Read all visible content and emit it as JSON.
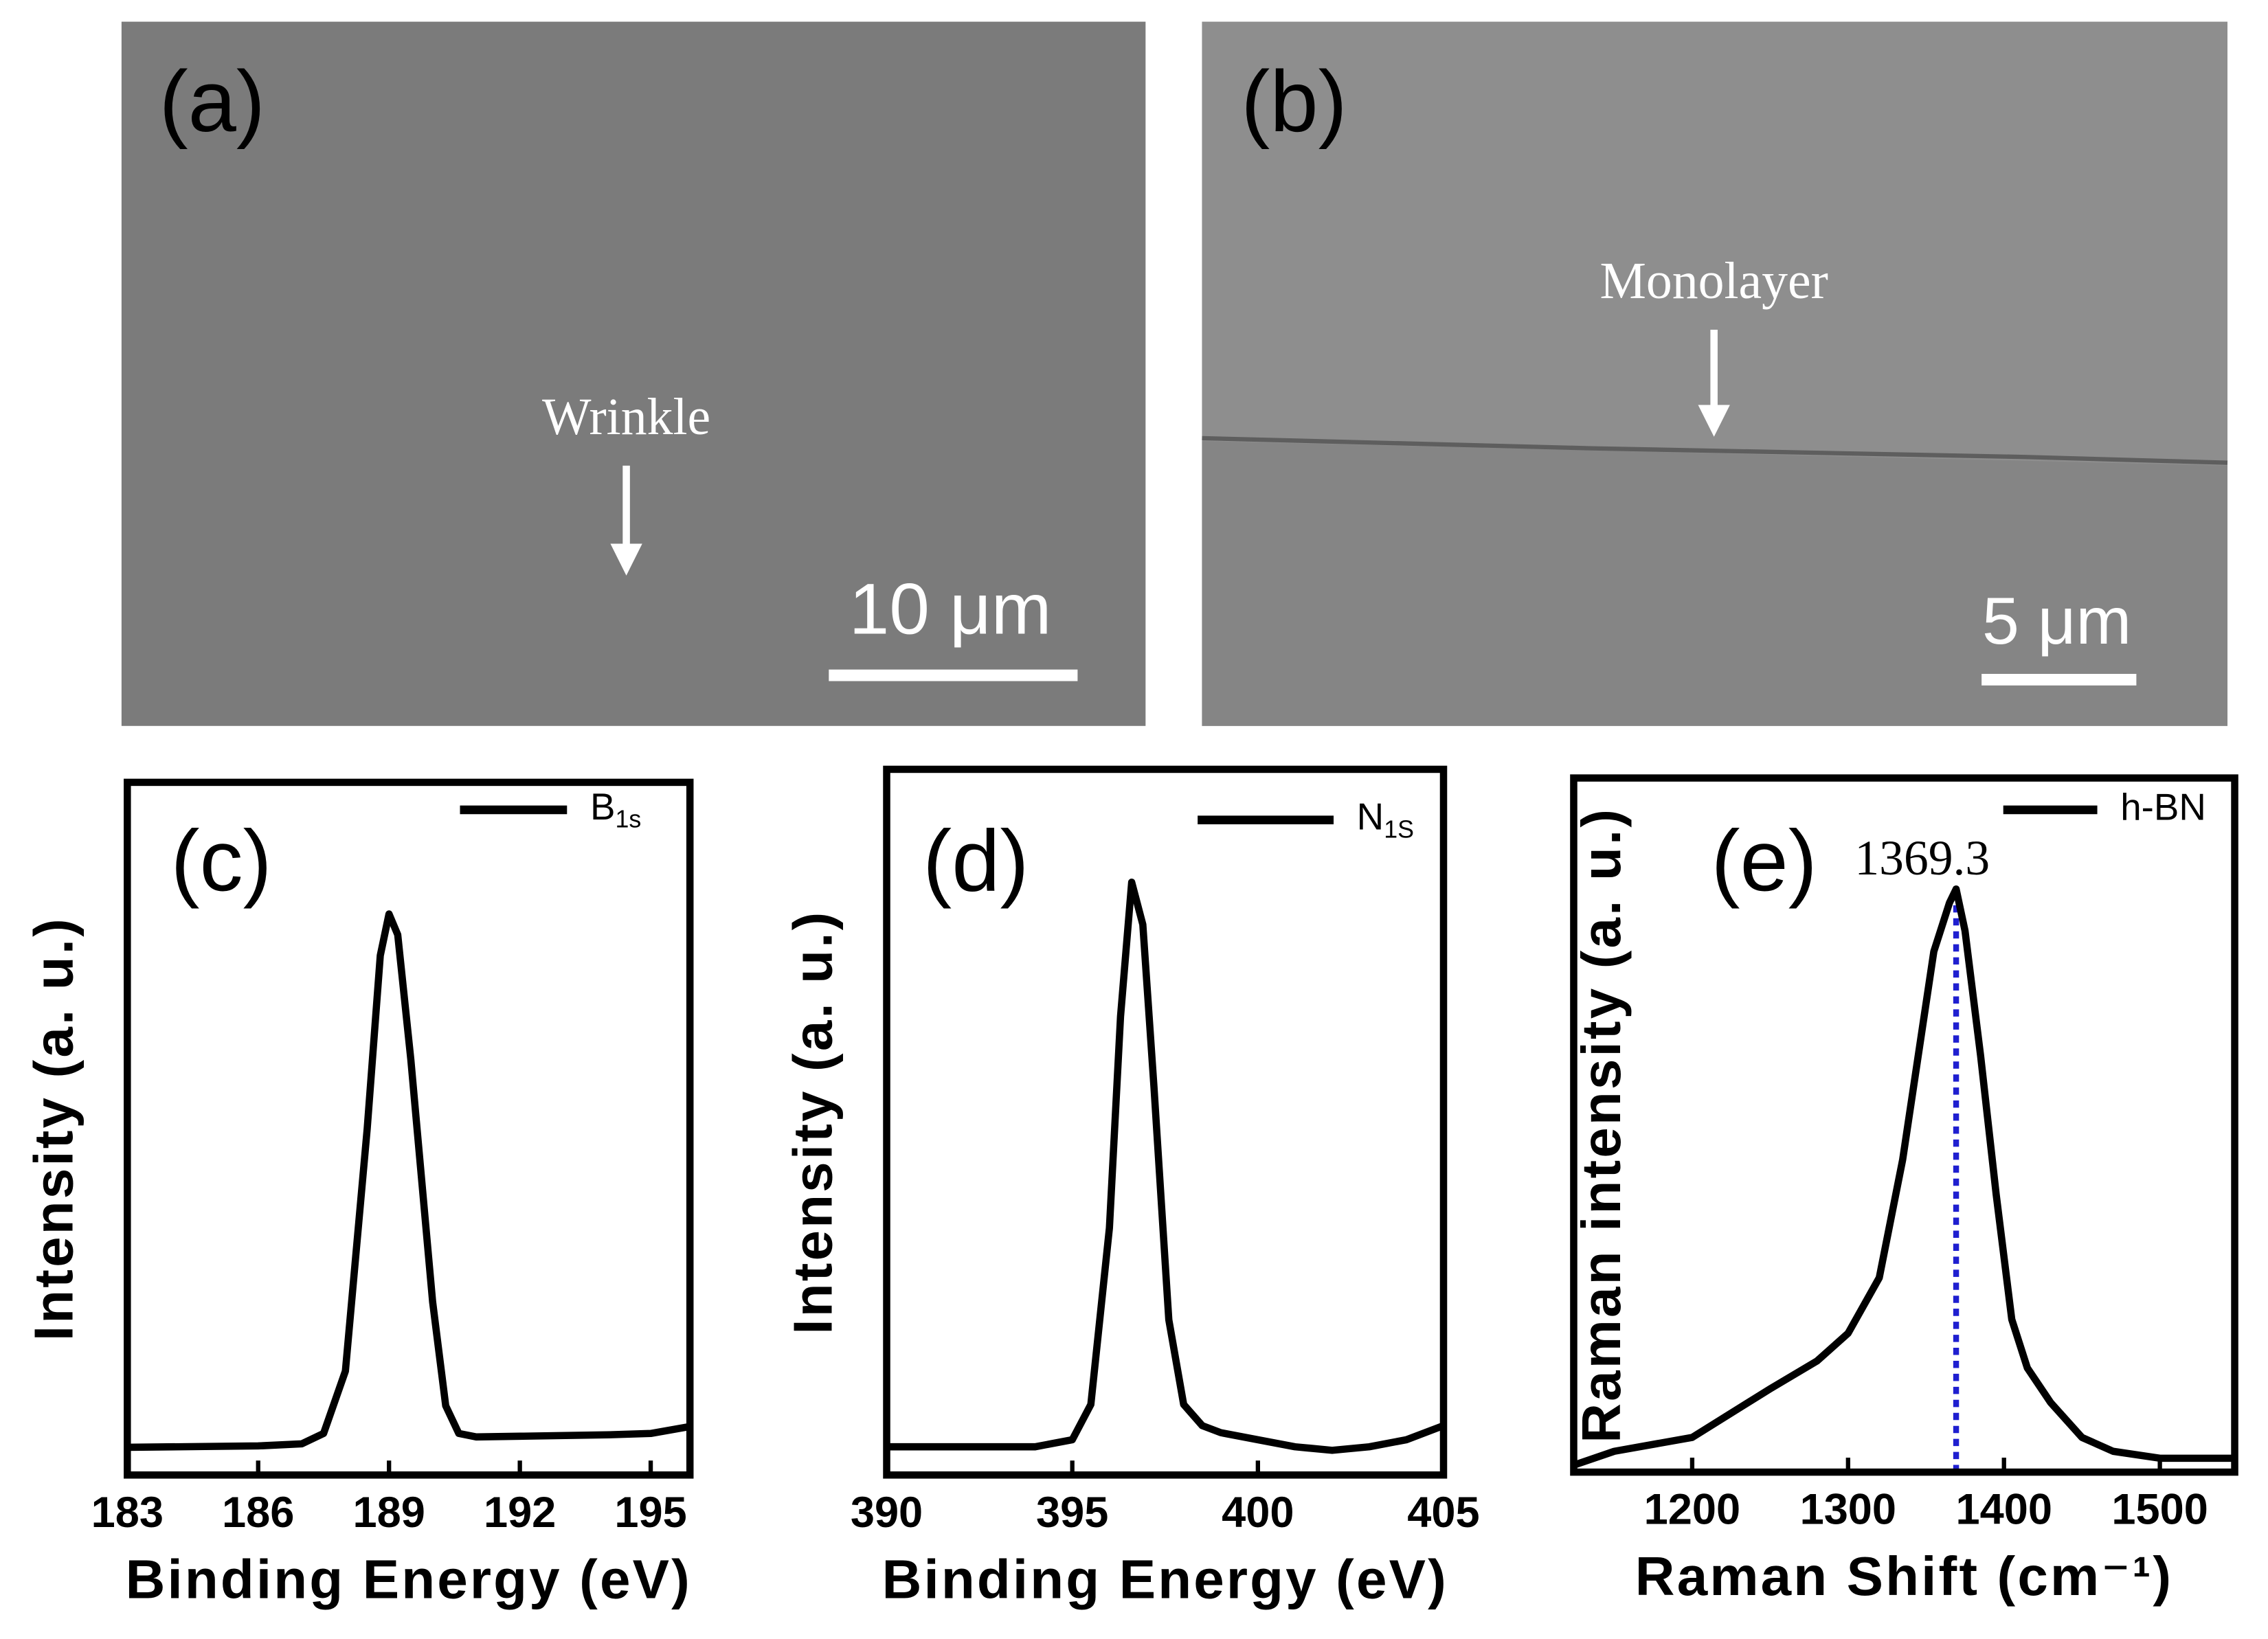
{
  "images": [
    {
      "label": "(a)",
      "annotation": "Wrinkle",
      "scale_bar": "10 μm"
    },
    {
      "label": "(b)",
      "annotation": "Monolayer",
      "scale_bar": "5 μm"
    }
  ],
  "chart_data": [
    {
      "type": "line",
      "panel": "(c)",
      "xlabel": "Binding Energy (eV)",
      "ylabel": "Intensity (a. u.)",
      "xlim": [
        183,
        195.9
      ],
      "xticks": [
        183,
        186,
        189,
        192,
        195
      ],
      "ylim": [
        0,
        100
      ],
      "series": [
        {
          "name": "B1s",
          "color": "#000000",
          "x": [
            183,
            186,
            187,
            187.5,
            188,
            188.5,
            188.8,
            189,
            189.2,
            189.5,
            190,
            190.3,
            190.6,
            191,
            192,
            194,
            195,
            195.9
          ],
          "values": [
            4,
            4.2,
            4.5,
            6,
            15,
            50,
            75,
            81,
            78,
            60,
            25,
            10,
            6,
            5.5,
            5.6,
            5.8,
            6,
            7
          ]
        }
      ]
    },
    {
      "type": "line",
      "panel": "(d)",
      "xlabel": "Binding Energy (eV)",
      "ylabel": "Intensity (a. u.)",
      "xlim": [
        390,
        405
      ],
      "xticks": [
        390,
        395,
        400,
        405
      ],
      "ylim": [
        0,
        100
      ],
      "series": [
        {
          "name": "N1S",
          "color": "#000000",
          "x": [
            390,
            394,
            395,
            395.5,
            396,
            396.3,
            396.6,
            396.9,
            397.2,
            397.6,
            398,
            398.5,
            399,
            400,
            401,
            402,
            403,
            404,
            405
          ],
          "values": [
            4,
            4,
            5,
            10,
            35,
            65,
            84,
            78,
            55,
            22,
            10,
            7,
            6,
            5,
            4,
            3.5,
            4,
            5,
            7
          ]
        }
      ]
    },
    {
      "type": "line",
      "panel": "(e)",
      "xlabel": "Raman Shift (cm⁻¹)",
      "ylabel": "Raman intensity (a. u.)",
      "xlim": [
        1124,
        1548
      ],
      "xticks": [
        1200,
        1300,
        1400,
        1500
      ],
      "ylim": [
        0,
        100
      ],
      "annotation": "1369.3",
      "marker_x": 1369.3,
      "marker_color": "#1f1fd0",
      "series": [
        {
          "name": "h-BN",
          "color": "#000000",
          "x": [
            1124,
            1150,
            1200,
            1250,
            1280,
            1300,
            1320,
            1335,
            1345,
            1355,
            1365,
            1369.3,
            1375,
            1385,
            1395,
            1405,
            1415,
            1430,
            1450,
            1470,
            1500,
            1548
          ],
          "values": [
            1,
            3,
            5,
            12,
            16,
            20,
            28,
            45,
            60,
            75,
            82,
            84,
            78,
            60,
            40,
            22,
            15,
            10,
            5,
            3,
            2,
            2
          ]
        }
      ]
    }
  ]
}
